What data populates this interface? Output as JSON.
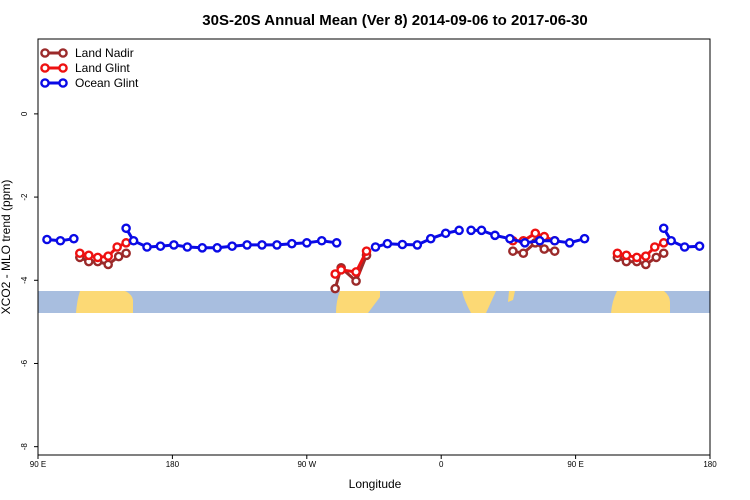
{
  "chart_data": {
    "type": "line",
    "title": "30S-20S Annual Mean (Ver 8)   2014-09-06 to 2017-06-30",
    "xlabel": "Longitude",
    "ylabel": "XCO2 - MLO trend (ppm)",
    "xlim": [
      90,
      540
    ],
    "ylim": [
      -8.2,
      1.8
    ],
    "xticks": [
      {
        "value": 90,
        "label": "90 E"
      },
      {
        "value": 180,
        "label": "180"
      },
      {
        "value": 270,
        "label": "90 W"
      },
      {
        "value": 360,
        "label": "0"
      },
      {
        "value": 450,
        "label": "90 E"
      },
      {
        "value": 540,
        "label": "180"
      }
    ],
    "yticks": [
      {
        "value": 0,
        "label": "0"
      },
      {
        "value": -2,
        "label": "-2"
      },
      {
        "value": -4,
        "label": "-4"
      },
      {
        "value": -6,
        "label": "-6"
      },
      {
        "value": -8,
        "label": "-8"
      }
    ],
    "legend_position": "top-left",
    "series": [
      {
        "name": "Land Nadir",
        "color": "#9b2a2a",
        "segments": [
          [
            [
              118,
              -3.45
            ],
            [
              124,
              -3.55
            ],
            [
              130,
              -3.55
            ],
            [
              137,
              -3.62
            ],
            [
              144,
              -3.43
            ],
            [
              149,
              -3.35
            ]
          ],
          [
            [
              289,
              -4.2
            ],
            [
              293,
              -3.7
            ],
            [
              303,
              -4.02
            ],
            [
              310,
              -3.4
            ]
          ],
          [
            [
              408,
              -3.3
            ],
            [
              415,
              -3.35
            ],
            [
              423,
              -3.1
            ],
            [
              429,
              -3.25
            ],
            [
              436,
              -3.3
            ]
          ],
          [
            [
              478,
              -3.45
            ],
            [
              484,
              -3.55
            ],
            [
              491,
              -3.55
            ],
            [
              497,
              -3.62
            ],
            [
              504,
              -3.45
            ],
            [
              509,
              -3.35
            ]
          ]
        ]
      },
      {
        "name": "Land Glint",
        "color": "#ee1111",
        "segments": [
          [
            [
              118,
              -3.35
            ],
            [
              124,
              -3.4
            ],
            [
              130,
              -3.45
            ],
            [
              137,
              -3.42
            ],
            [
              143,
              -3.2
            ],
            [
              149,
              -3.1
            ]
          ],
          [
            [
              289,
              -3.85
            ],
            [
              293,
              -3.75
            ],
            [
              303,
              -3.8
            ],
            [
              310,
              -3.3
            ]
          ],
          [
            [
              408,
              -3.05
            ],
            [
              415,
              -3.05
            ],
            [
              423,
              -2.87
            ],
            [
              429,
              -2.95
            ],
            [
              436,
              -3.05
            ]
          ],
          [
            [
              478,
              -3.35
            ],
            [
              484,
              -3.4
            ],
            [
              491,
              -3.45
            ],
            [
              497,
              -3.42
            ],
            [
              503,
              -3.2
            ],
            [
              509,
              -3.1
            ]
          ]
        ]
      },
      {
        "name": "Ocean Glint",
        "color": "#0a0ae6",
        "segments": [
          [
            [
              96,
              -3.02
            ],
            [
              105,
              -3.05
            ],
            [
              114,
              -3.0
            ]
          ],
          [
            [
              149,
              -2.75
            ],
            [
              154,
              -3.05
            ],
            [
              163,
              -3.2
            ],
            [
              172,
              -3.18
            ],
            [
              181,
              -3.15
            ],
            [
              190,
              -3.2
            ],
            [
              200,
              -3.22
            ],
            [
              210,
              -3.22
            ],
            [
              220,
              -3.18
            ],
            [
              230,
              -3.15
            ],
            [
              240,
              -3.15
            ],
            [
              250,
              -3.15
            ],
            [
              260,
              -3.12
            ],
            [
              270,
              -3.1
            ],
            [
              280,
              -3.05
            ],
            [
              290,
              -3.1
            ]
          ],
          [
            [
              316,
              -3.2
            ],
            [
              324,
              -3.12
            ],
            [
              334,
              -3.14
            ],
            [
              344,
              -3.15
            ],
            [
              353,
              -3.0
            ],
            [
              363,
              -2.87
            ],
            [
              372,
              -2.8
            ]
          ],
          [
            [
              380,
              -2.8
            ],
            [
              387,
              -2.8
            ],
            [
              396,
              -2.92
            ],
            [
              406,
              -3.0
            ],
            [
              416,
              -3.1
            ],
            [
              426,
              -3.05
            ],
            [
              436,
              -3.05
            ],
            [
              446,
              -3.1
            ],
            [
              456,
              -3.0
            ]
          ],
          [
            [
              509,
              -2.75
            ],
            [
              514,
              -3.05
            ],
            [
              523,
              -3.2
            ],
            [
              533,
              -3.18
            ]
          ]
        ]
      }
    ]
  }
}
